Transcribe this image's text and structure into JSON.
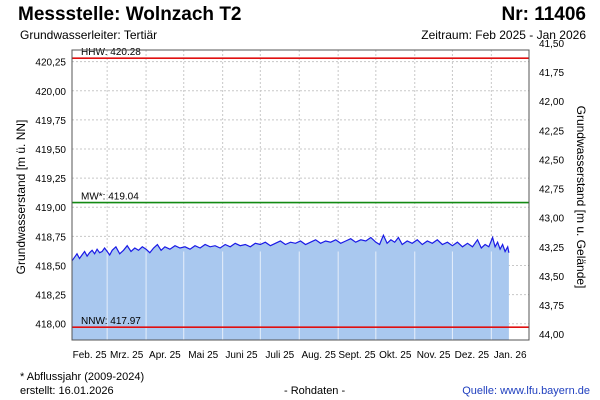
{
  "header": {
    "title": "Messstelle: Wolnzach T2",
    "number": "Nr: 11406",
    "aquifer": "Grundwasserleiter: Tertiär",
    "period": "Zeitraum: Feb 2025 - Jan 2026"
  },
  "footer": {
    "note": "* Abflussjahr (2009-2024)",
    "created": "erstellt:  16.01.2026",
    "raw": "- Rohdaten -",
    "source_label": "Quelle: ",
    "source_link": "www.lfu.bayern.de"
  },
  "chart_data": {
    "type": "area",
    "ylabel": "Grundwasserstand [m ü. NN]",
    "ylabel_right": "Grundwasserstand [m u. Gelände]",
    "ylim": [
      417.86,
      420.35
    ],
    "y2lim": [
      44.05,
      41.56
    ],
    "y_ticks": [
      "418,00",
      "418,25",
      "418,50",
      "418,75",
      "419,00",
      "419,25",
      "419,50",
      "419,75",
      "420,00",
      "420,25"
    ],
    "y_tick_values": [
      418.0,
      418.25,
      418.5,
      418.75,
      419.0,
      419.25,
      419.5,
      419.75,
      420.0,
      420.25
    ],
    "y2_ticks": [
      "41,50",
      "41,75",
      "42,00",
      "42,25",
      "42,50",
      "42,75",
      "43,00",
      "43,25",
      "43,50",
      "43,75",
      "44,00"
    ],
    "y2_tick_values": [
      41.5,
      41.75,
      42.0,
      42.25,
      42.5,
      42.75,
      43.0,
      43.25,
      43.5,
      43.75,
      44.0
    ],
    "x_ticks": [
      "Feb. 25",
      "Mrz. 25",
      "Apr. 25",
      "Mai 25",
      "Juni 25",
      "Juli 25",
      "Aug. 25",
      "Sept. 25",
      "Okt. 25",
      "Nov. 25",
      "Dez. 25",
      "Jan. 26"
    ],
    "x_tick_dates": [
      "2025-02-01",
      "2025-03-01",
      "2025-04-01",
      "2025-05-01",
      "2025-06-01",
      "2025-07-01",
      "2025-08-01",
      "2025-09-01",
      "2025-10-01",
      "2025-11-01",
      "2025-12-01",
      "2026-01-01"
    ],
    "xlim": [
      "2025-02-01",
      "2026-01-31"
    ],
    "reference_lines": [
      {
        "label": "HHW: 420.28",
        "value": 420.28,
        "color": "#e01010"
      },
      {
        "label": "MW*: 419.04",
        "value": 419.04,
        "color": "#138a13"
      },
      {
        "label": "NNW: 417.97",
        "value": 417.97,
        "color": "#e01010"
      }
    ],
    "series": [
      {
        "color": "#1a1ae6",
        "fill": "#a9c8ef",
        "points": [
          [
            "2025-02-01",
            418.54
          ],
          [
            "2025-02-03",
            418.57
          ],
          [
            "2025-02-05",
            418.6
          ],
          [
            "2025-02-07",
            418.56
          ],
          [
            "2025-02-09",
            418.59
          ],
          [
            "2025-02-11",
            418.62
          ],
          [
            "2025-02-13",
            418.58
          ],
          [
            "2025-02-15",
            418.61
          ],
          [
            "2025-02-17",
            418.63
          ],
          [
            "2025-02-19",
            418.6
          ],
          [
            "2025-02-21",
            418.64
          ],
          [
            "2025-02-23",
            418.61
          ],
          [
            "2025-02-25",
            418.62
          ],
          [
            "2025-02-27",
            418.65
          ],
          [
            "2025-03-01",
            418.62
          ],
          [
            "2025-03-03",
            418.59
          ],
          [
            "2025-03-05",
            418.63
          ],
          [
            "2025-03-08",
            418.66
          ],
          [
            "2025-03-11",
            418.6
          ],
          [
            "2025-03-14",
            418.63
          ],
          [
            "2025-03-17",
            418.67
          ],
          [
            "2025-03-20",
            418.62
          ],
          [
            "2025-03-23",
            418.65
          ],
          [
            "2025-03-26",
            418.63
          ],
          [
            "2025-03-29",
            418.66
          ],
          [
            "2025-04-01",
            418.64
          ],
          [
            "2025-04-04",
            418.61
          ],
          [
            "2025-04-07",
            418.65
          ],
          [
            "2025-04-10",
            418.68
          ],
          [
            "2025-04-13",
            418.63
          ],
          [
            "2025-04-16",
            418.66
          ],
          [
            "2025-04-20",
            418.64
          ],
          [
            "2025-04-24",
            418.67
          ],
          [
            "2025-04-28",
            418.65
          ],
          [
            "2025-05-02",
            418.66
          ],
          [
            "2025-05-06",
            418.64
          ],
          [
            "2025-05-10",
            418.67
          ],
          [
            "2025-05-14",
            418.65
          ],
          [
            "2025-05-18",
            418.68
          ],
          [
            "2025-05-22",
            418.66
          ],
          [
            "2025-05-26",
            418.67
          ],
          [
            "2025-05-30",
            418.65
          ],
          [
            "2025-06-03",
            418.68
          ],
          [
            "2025-06-07",
            418.66
          ],
          [
            "2025-06-11",
            418.69
          ],
          [
            "2025-06-15",
            418.67
          ],
          [
            "2025-06-19",
            418.68
          ],
          [
            "2025-06-23",
            418.66
          ],
          [
            "2025-06-27",
            418.69
          ],
          [
            "2025-07-01",
            418.68
          ],
          [
            "2025-07-05",
            418.7
          ],
          [
            "2025-07-09",
            418.67
          ],
          [
            "2025-07-13",
            418.69
          ],
          [
            "2025-07-17",
            418.71
          ],
          [
            "2025-07-21",
            418.68
          ],
          [
            "2025-07-25",
            418.7
          ],
          [
            "2025-07-29",
            418.69
          ],
          [
            "2025-08-02",
            418.71
          ],
          [
            "2025-08-06",
            418.68
          ],
          [
            "2025-08-10",
            418.7
          ],
          [
            "2025-08-14",
            418.72
          ],
          [
            "2025-08-18",
            418.69
          ],
          [
            "2025-08-22",
            418.71
          ],
          [
            "2025-08-26",
            418.7
          ],
          [
            "2025-08-30",
            418.72
          ],
          [
            "2025-09-03",
            418.69
          ],
          [
            "2025-09-07",
            418.71
          ],
          [
            "2025-09-11",
            418.73
          ],
          [
            "2025-09-15",
            418.7
          ],
          [
            "2025-09-19",
            418.72
          ],
          [
            "2025-09-23",
            418.71
          ],
          [
            "2025-09-27",
            418.74
          ],
          [
            "2025-10-01",
            418.7
          ],
          [
            "2025-10-04",
            418.68
          ],
          [
            "2025-10-07",
            418.76
          ],
          [
            "2025-10-10",
            418.69
          ],
          [
            "2025-10-13",
            418.72
          ],
          [
            "2025-10-16",
            418.7
          ],
          [
            "2025-10-19",
            418.74
          ],
          [
            "2025-10-22",
            418.68
          ],
          [
            "2025-10-26",
            418.71
          ],
          [
            "2025-10-30",
            418.69
          ],
          [
            "2025-11-03",
            418.72
          ],
          [
            "2025-11-07",
            418.68
          ],
          [
            "2025-11-11",
            418.71
          ],
          [
            "2025-11-15",
            418.69
          ],
          [
            "2025-11-19",
            418.72
          ],
          [
            "2025-11-23",
            418.68
          ],
          [
            "2025-11-27",
            418.7
          ],
          [
            "2025-12-01",
            418.67
          ],
          [
            "2025-12-05",
            418.7
          ],
          [
            "2025-12-09",
            418.66
          ],
          [
            "2025-12-13",
            418.69
          ],
          [
            "2025-12-17",
            418.66
          ],
          [
            "2025-12-21",
            418.72
          ],
          [
            "2025-12-24",
            418.65
          ],
          [
            "2025-12-27",
            418.68
          ],
          [
            "2025-12-30",
            418.66
          ],
          [
            "2026-01-02",
            418.74
          ],
          [
            "2026-01-04",
            418.66
          ],
          [
            "2026-01-06",
            418.7
          ],
          [
            "2026-01-08",
            418.64
          ],
          [
            "2026-01-10",
            418.68
          ],
          [
            "2026-01-12",
            418.62
          ],
          [
            "2026-01-14",
            418.66
          ],
          [
            "2026-01-15",
            418.61
          ]
        ]
      }
    ],
    "grid": true,
    "legend": "none"
  }
}
